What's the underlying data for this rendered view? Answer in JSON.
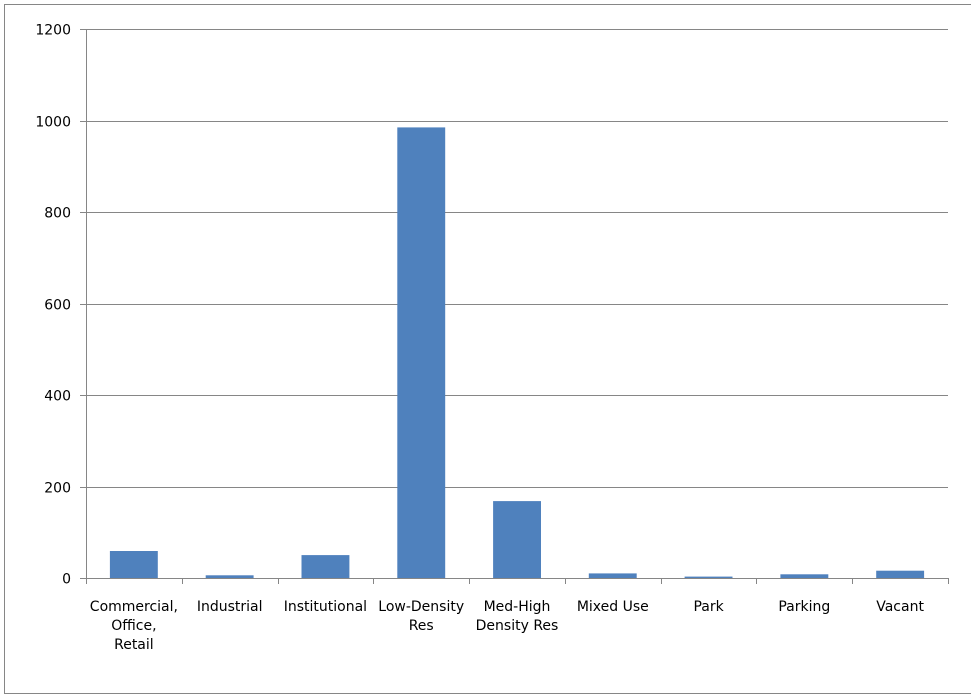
{
  "chart_data": {
    "type": "bar",
    "title": "",
    "xlabel": "",
    "ylabel": "",
    "categories": [
      [
        "Commercial,",
        "Office,",
        "Retail"
      ],
      [
        "Industrial"
      ],
      [
        "Institutional"
      ],
      [
        "Low-Density",
        "Res"
      ],
      [
        "Med-High",
        "Density Res"
      ],
      [
        "Mixed Use"
      ],
      [
        "Park"
      ],
      [
        "Parking"
      ],
      [
        "Vacant"
      ]
    ],
    "values": [
      59,
      6,
      50,
      985,
      168,
      10,
      3,
      8,
      16
    ],
    "ylim": [
      0,
      1200
    ],
    "yticks": [
      "0",
      "200",
      "400",
      "600",
      "800",
      "1000",
      "1200"
    ],
    "grid": true,
    "legend": "none",
    "colors": {
      "bar": "#4F81BD",
      "grid": "#868686",
      "axis": "#868686"
    }
  }
}
